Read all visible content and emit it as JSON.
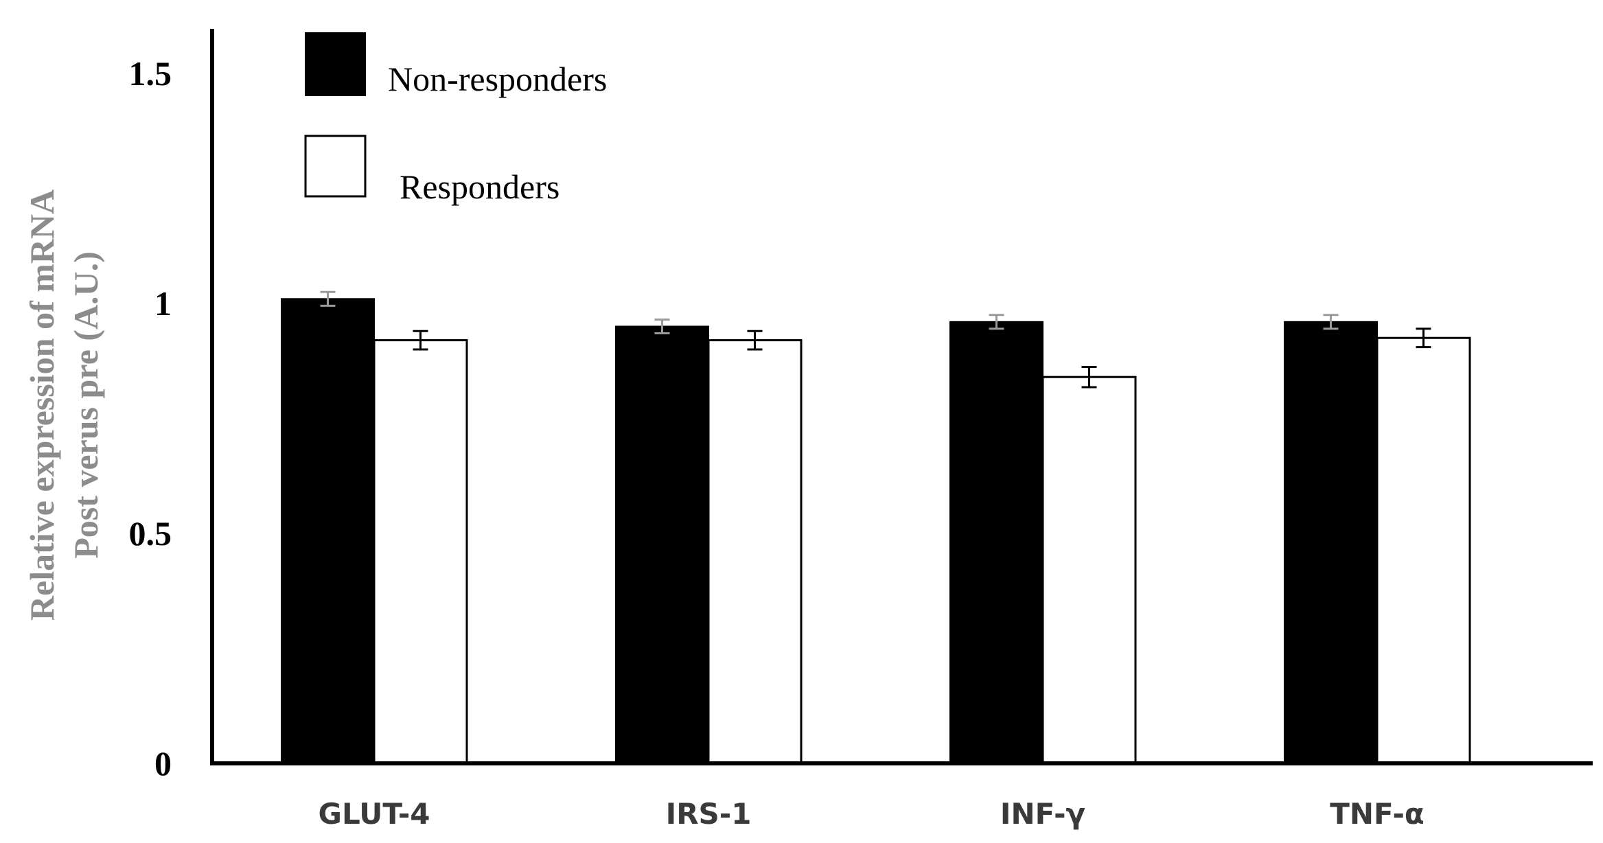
{
  "chart_data": {
    "type": "bar",
    "title": "",
    "xlabel": "",
    "ylabel_lines": [
      "Relative expression of mRNA",
      "Post verus pre (A.U.)"
    ],
    "ylim": [
      0,
      1.5
    ],
    "yticks": [
      "0",
      "0.5",
      "1",
      "1.5"
    ],
    "ytick_values": [
      0,
      0.5,
      1,
      1.5
    ],
    "grid": false,
    "legend_position": "top-left",
    "categories": [
      "GLUT-4",
      "IRS-1",
      "INF-γ",
      "TNF-α"
    ],
    "series": [
      {
        "name": "Non-responders",
        "fill": "#000000",
        "values": [
          1.01,
          0.95,
          0.96,
          0.96
        ],
        "errors": [
          0.015,
          0.015,
          0.015,
          0.015
        ]
      },
      {
        "name": "Responders",
        "fill": "#ffffff",
        "values": [
          0.92,
          0.92,
          0.84,
          0.925
        ],
        "errors": [
          0.02,
          0.02,
          0.022,
          0.02
        ]
      }
    ]
  }
}
